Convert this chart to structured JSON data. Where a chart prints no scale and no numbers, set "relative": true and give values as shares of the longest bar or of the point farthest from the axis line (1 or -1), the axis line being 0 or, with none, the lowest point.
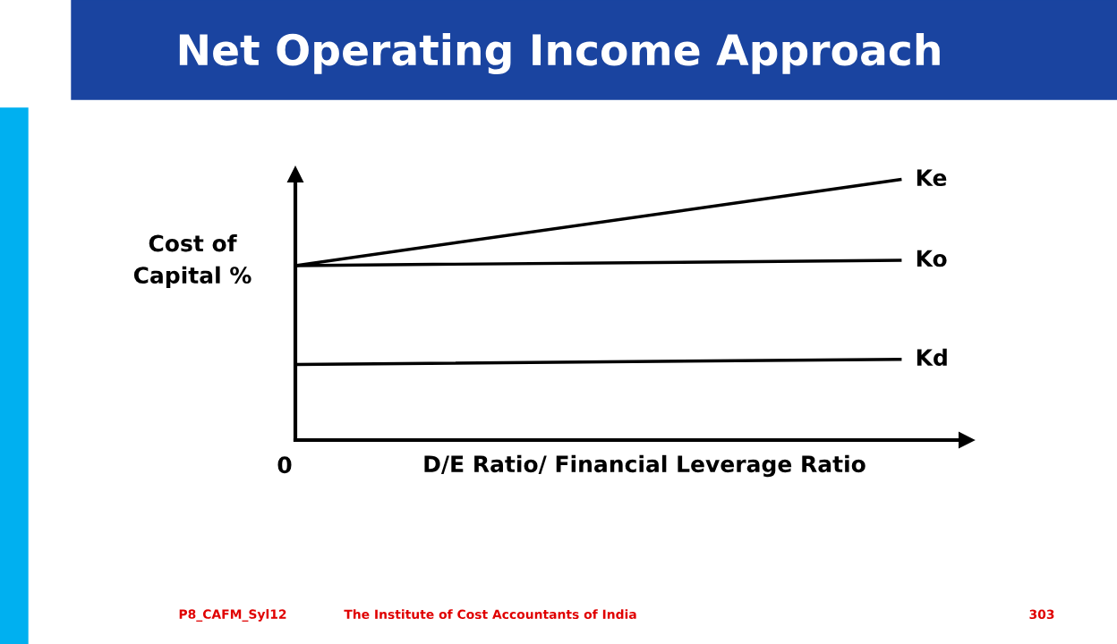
{
  "chart_data": {
    "type": "line",
    "title": "Net Operating Income Approach",
    "xlabel": "D/E Ratio/ Financial Leverage Ratio",
    "ylabel": "Cost of\nCapital %",
    "categories": [
      null,
      null
    ],
    "relative": true,
    "legend": false,
    "marker": "none",
    "line_style": "solid",
    "series": [
      {
        "name": "Ke",
        "color": "#000000",
        "values": [
          0.67,
          1.0
        ]
      },
      {
        "name": "Ko",
        "color": "#000000",
        "values": [
          0.67,
          0.69
        ]
      },
      {
        "name": "Kd",
        "color": "#000000",
        "values": [
          0.29,
          0.31
        ]
      }
    ],
    "annotations": [
      "0",
      "P8_CAFM_Syl12",
      "The Institute of Cost Accountants of India",
      "303"
    ]
  }
}
